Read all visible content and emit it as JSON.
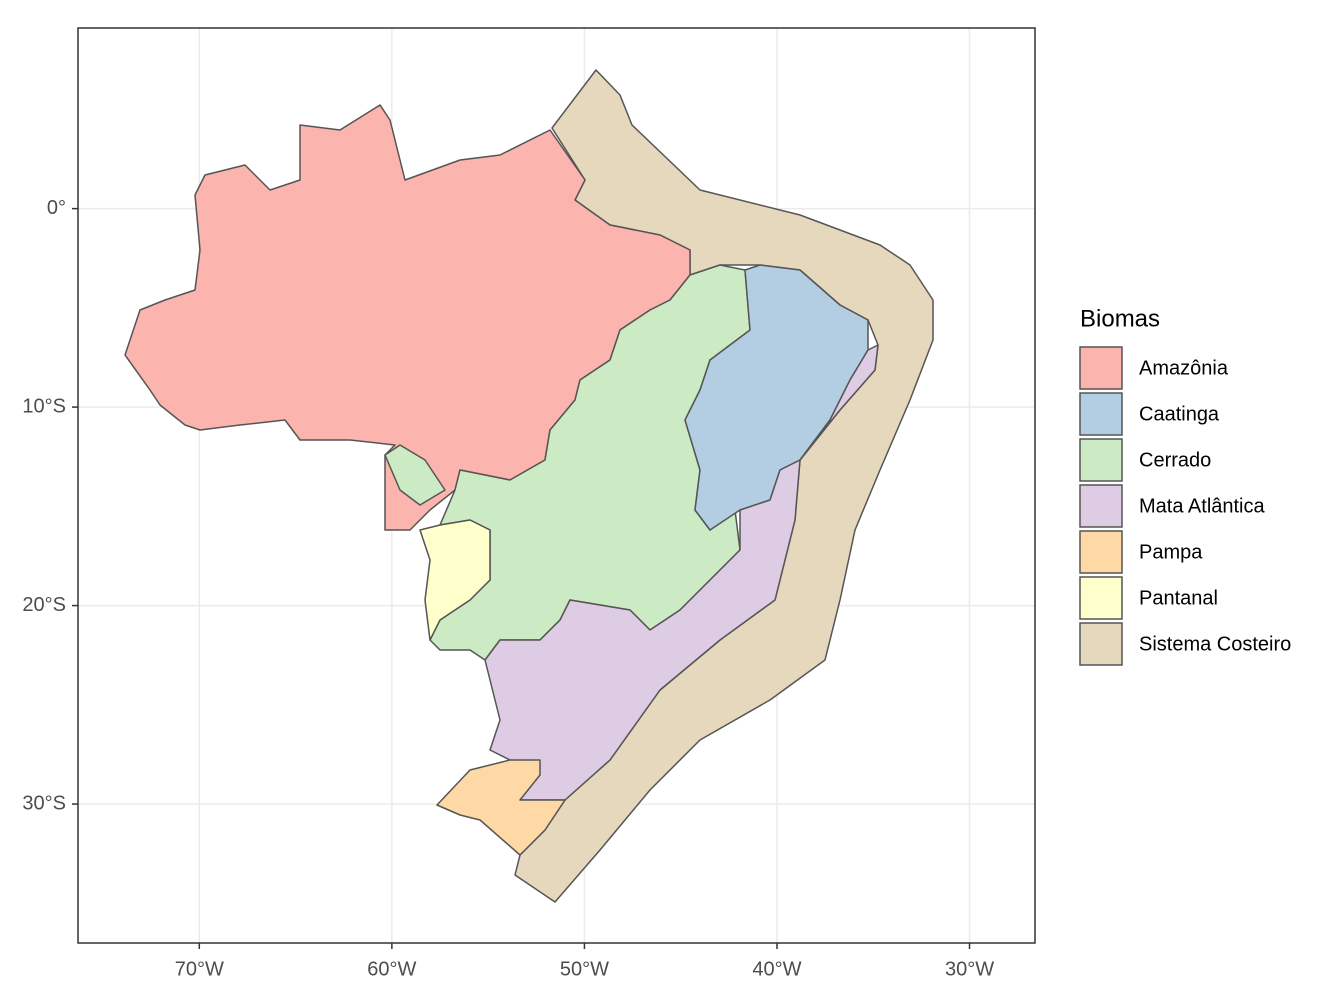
{
  "chart_data": {
    "type": "map",
    "xlim": [
      -76.3,
      -26.6
    ],
    "ylim": [
      -37.0,
      9.1
    ],
    "xticks": [
      {
        "value": -70,
        "label": "70°W"
      },
      {
        "value": -60,
        "label": "60°W"
      },
      {
        "value": -50,
        "label": "50°W"
      },
      {
        "value": -40,
        "label": "40°W"
      },
      {
        "value": -30,
        "label": "30°W"
      }
    ],
    "yticks": [
      {
        "value": 0,
        "label": "0°"
      },
      {
        "value": -10,
        "label": "10°S"
      },
      {
        "value": -20,
        "label": "20°S"
      },
      {
        "value": -30,
        "label": "30°S"
      }
    ],
    "grid": true,
    "legend": {
      "title": "Biomas",
      "position": "right"
    },
    "series": [
      {
        "name": "Amazônia",
        "color": "#FBB4AE"
      },
      {
        "name": "Caatinga",
        "color": "#B3CDE3"
      },
      {
        "name": "Cerrado",
        "color": "#CCEBC5"
      },
      {
        "name": "Mata Atlântica",
        "color": "#DECBE4"
      },
      {
        "name": "Pampa",
        "color": "#FED9A6"
      },
      {
        "name": "Pantanal",
        "color": "#FFFFCC"
      },
      {
        "name": "Sistema Costeiro",
        "color": "#E5D8BD"
      }
    ]
  }
}
